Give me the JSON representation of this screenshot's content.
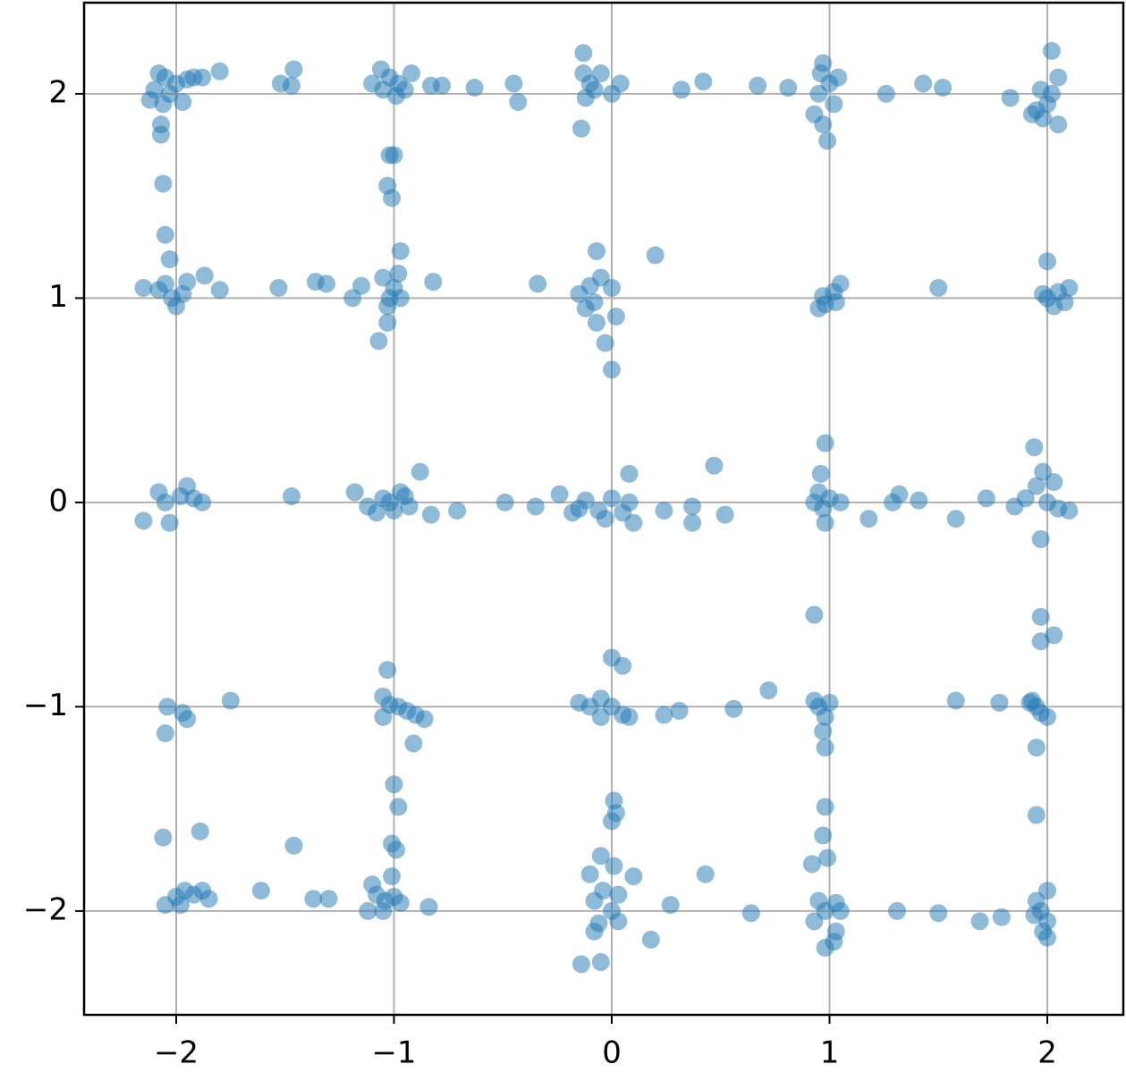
{
  "chart_data": {
    "type": "scatter",
    "color": "#1f77b4",
    "grid": true,
    "xlim": [
      -2.423,
      2.349
    ],
    "ylim": [
      -2.508,
      2.446
    ],
    "xticks": [
      {
        "value": -2,
        "label": "−2"
      },
      {
        "value": -1,
        "label": "−1"
      },
      0,
      1,
      2
    ],
    "yticks": [
      {
        "value": -2,
        "label": "−2"
      },
      {
        "value": -1,
        "label": "−1"
      },
      0,
      1,
      2
    ],
    "x": [
      -2.08,
      -2.05,
      -2.0,
      -1.95,
      -2.1,
      -2.06,
      -2.07,
      -2.07,
      -1.97,
      -1.92,
      -1.88,
      -1.8,
      -2.12,
      -2.03,
      -1.52,
      -1.46,
      -1.47,
      -0.83,
      -0.78,
      -0.63,
      -0.45,
      -0.43,
      0.32,
      0.42,
      0.67,
      0.81,
      1.26,
      1.43,
      1.52,
      1.83,
      2.02,
      2.05,
      2.05,
      -1.06,
      -1.02,
      -0.98,
      -0.95,
      -1.05,
      -1.1,
      -0.92,
      -0.99,
      -0.1,
      -0.05,
      -0.13,
      -0.12,
      -0.08,
      0.0,
      0.04,
      -0.14,
      -0.13,
      0.96,
      0.95,
      0.93,
      0.97,
      1.02,
      1.0,
      0.97,
      0.99,
      1.04,
      1.95,
      1.98,
      2.0,
      1.97,
      1.93,
      2.02,
      -1.0,
      -1.02,
      -1.03,
      -1.01,
      -2.06,
      -2.05,
      -2.03,
      -2.15,
      -2.08,
      -2.02,
      -2.0,
      -2.05,
      -1.97,
      -1.95,
      -1.87,
      -1.8,
      -1.53,
      -1.36,
      -1.31,
      -1.19,
      -1.15,
      -0.82,
      -0.34,
      0.2,
      1.5,
      2.0,
      -1.05,
      -1.0,
      -0.97,
      -1.03,
      -0.98,
      -0.97,
      -1.03,
      -1.07,
      -1.02,
      -0.15,
      -0.1,
      -0.05,
      -0.08,
      -0.12,
      0.0,
      -0.07,
      -0.07,
      0.02,
      -0.03,
      0.0,
      0.95,
      0.98,
      1.02,
      1.05,
      0.97,
      1.03,
      2.0,
      2.05,
      2.1,
      2.03,
      1.98,
      2.08,
      -2.15,
      -2.08,
      -2.05,
      -1.98,
      -1.95,
      -1.92,
      -2.03,
      -1.88,
      -1.47,
      -1.18,
      -0.95,
      -0.88,
      -0.83,
      -0.71,
      -0.49,
      -0.35,
      -0.24,
      -0.18,
      0.24,
      0.37,
      0.37,
      0.47,
      0.52,
      1.18,
      1.29,
      1.32,
      1.41,
      1.58,
      1.72,
      -1.12,
      -1.05,
      -1.0,
      -0.97,
      -1.08,
      -0.93,
      -1.02,
      -0.12,
      -0.06,
      0.0,
      0.05,
      0.08,
      -0.03,
      0.1,
      0.08,
      -0.15,
      0.93,
      0.97,
      1.0,
      1.05,
      0.95,
      0.96,
      0.98,
      0.98,
      1.9,
      1.95,
      1.98,
      2.0,
      2.05,
      2.1,
      1.94,
      2.03,
      1.97,
      1.85,
      0.93,
      1.97,
      1.97,
      2.03,
      -2.04,
      -1.97,
      -1.95,
      -2.05,
      -1.75,
      -1.05,
      -1.02,
      -0.98,
      -0.94,
      -0.9,
      -0.86,
      -1.05,
      -1.03,
      -0.91,
      -0.15,
      -0.1,
      -0.05,
      0.0,
      0.05,
      0.08,
      -0.05,
      0.0,
      0.05,
      0.24,
      0.31,
      0.56,
      0.72,
      0.93,
      0.95,
      0.98,
      1.0,
      0.97,
      0.98,
      1.92,
      1.95,
      2.0,
      1.93,
      1.97,
      1.95,
      1.58,
      1.78,
      -1.0,
      -0.98,
      -1.01,
      -0.99,
      0.01,
      0.0,
      0.02,
      0.98,
      0.97,
      0.92,
      0.99,
      1.95,
      -2.05,
      -2.0,
      -1.96,
      -1.92,
      -1.88,
      -1.85,
      -1.98,
      -2.06,
      -1.89,
      -1.61,
      -1.46,
      -1.37,
      -1.3,
      -1.12,
      -0.84,
      -0.05,
      -0.1,
      0.1,
      0.18,
      0.27,
      0.43,
      0.64,
      1.31,
      1.5,
      1.69,
      1.79,
      -1.08,
      -1.04,
      -1.0,
      -0.97,
      -1.05,
      -1.1,
      -1.01,
      -0.08,
      -0.04,
      0.0,
      0.03,
      -0.06,
      -0.08,
      0.03,
      -0.14,
      -0.05,
      0.01,
      0.95,
      0.98,
      1.03,
      1.05,
      0.93,
      1.03,
      1.02,
      0.98,
      1.95,
      1.97,
      2.0,
      1.98,
      2.0,
      1.94,
      2.0
    ],
    "values": [
      2.1,
      2.08,
      2.05,
      2.07,
      2.02,
      1.95,
      1.85,
      1.8,
      1.96,
      2.08,
      2.08,
      2.11,
      1.97,
      2.0,
      2.05,
      2.12,
      2.04,
      2.04,
      2.04,
      2.03,
      2.05,
      1.96,
      2.02,
      2.06,
      2.04,
      2.03,
      2.0,
      2.05,
      2.03,
      1.98,
      2.21,
      2.08,
      1.85,
      2.12,
      2.08,
      2.05,
      2.02,
      2.02,
      2.05,
      2.1,
      1.99,
      2.05,
      2.1,
      2.2,
      1.98,
      2.02,
      2.0,
      2.05,
      1.83,
      2.1,
      2.1,
      2.0,
      1.9,
      1.85,
      1.95,
      2.05,
      2.15,
      1.77,
      2.08,
      1.92,
      1.88,
      1.95,
      2.02,
      1.9,
      2.0,
      1.7,
      1.7,
      1.55,
      1.49,
      1.56,
      1.31,
      1.19,
      1.05,
      1.04,
      1.0,
      0.96,
      1.07,
      1.02,
      1.08,
      1.11,
      1.04,
      1.05,
      1.08,
      1.07,
      1.0,
      1.06,
      1.08,
      1.07,
      1.21,
      1.05,
      1.18,
      1.1,
      1.05,
      1.0,
      0.96,
      1.12,
      1.23,
      0.88,
      0.79,
      1.0,
      1.02,
      1.06,
      1.1,
      0.98,
      0.95,
      1.05,
      1.23,
      0.88,
      0.91,
      0.78,
      0.65,
      0.95,
      0.97,
      1.03,
      1.07,
      1.01,
      0.98,
      1.0,
      1.03,
      1.05,
      0.96,
      1.02,
      0.98,
      -0.09,
      0.05,
      0.0,
      0.03,
      0.08,
      0.02,
      -0.1,
      0.0,
      0.03,
      0.05,
      0.03,
      0.15,
      -0.06,
      -0.04,
      0.0,
      -0.02,
      0.04,
      -0.05,
      -0.04,
      -0.02,
      -0.1,
      0.18,
      -0.06,
      -0.08,
      0.0,
      0.04,
      0.01,
      -0.08,
      0.02,
      -0.02,
      0.02,
      -0.04,
      0.05,
      -0.05,
      -0.02,
      0.0,
      0.01,
      -0.04,
      0.02,
      -0.05,
      0.0,
      -0.08,
      -0.1,
      0.14,
      -0.03,
      0.0,
      -0.03,
      0.02,
      0.0,
      0.05,
      0.14,
      0.29,
      -0.1,
      0.02,
      0.08,
      0.15,
      0.0,
      -0.03,
      -0.04,
      0.27,
      0.1,
      -0.18,
      -0.02,
      -0.55,
      -0.56,
      -0.68,
      -0.65,
      -1.0,
      -1.03,
      -1.06,
      -1.13,
      -0.97,
      -0.95,
      -0.99,
      -1.0,
      -1.02,
      -1.04,
      -1.06,
      -1.05,
      -0.82,
      -1.18,
      -0.98,
      -1.0,
      -0.96,
      -1.0,
      -1.04,
      -1.05,
      -1.05,
      -0.76,
      -0.8,
      -1.04,
      -1.02,
      -1.01,
      -0.92,
      -0.97,
      -1.0,
      -1.05,
      -0.98,
      -1.12,
      -1.2,
      -0.98,
      -1.0,
      -1.05,
      -0.97,
      -1.03,
      -1.2,
      -0.97,
      -0.98,
      -1.38,
      -1.49,
      -1.67,
      -1.7,
      -1.46,
      -1.56,
      -1.52,
      -1.49,
      -1.63,
      -1.77,
      -1.74,
      -1.53,
      -1.97,
      -1.93,
      -1.9,
      -1.92,
      -1.9,
      -1.94,
      -1.97,
      -1.64,
      -1.61,
      -1.9,
      -1.68,
      -1.94,
      -1.94,
      -2.0,
      -1.98,
      -1.73,
      -1.82,
      -1.83,
      -2.14,
      -1.97,
      -1.82,
      -2.01,
      -2.0,
      -2.01,
      -2.05,
      -2.03,
      -1.92,
      -1.95,
      -1.93,
      -1.96,
      -2.0,
      -1.87,
      -1.83,
      -1.95,
      -1.9,
      -2.0,
      -2.05,
      -2.06,
      -2.1,
      -1.92,
      -2.26,
      -2.25,
      -1.78,
      -1.95,
      -2.0,
      -1.96,
      -2.0,
      -2.05,
      -2.1,
      -2.15,
      -2.18,
      -1.95,
      -2.0,
      -2.05,
      -2.1,
      -1.9,
      -2.02,
      -2.13
    ]
  }
}
